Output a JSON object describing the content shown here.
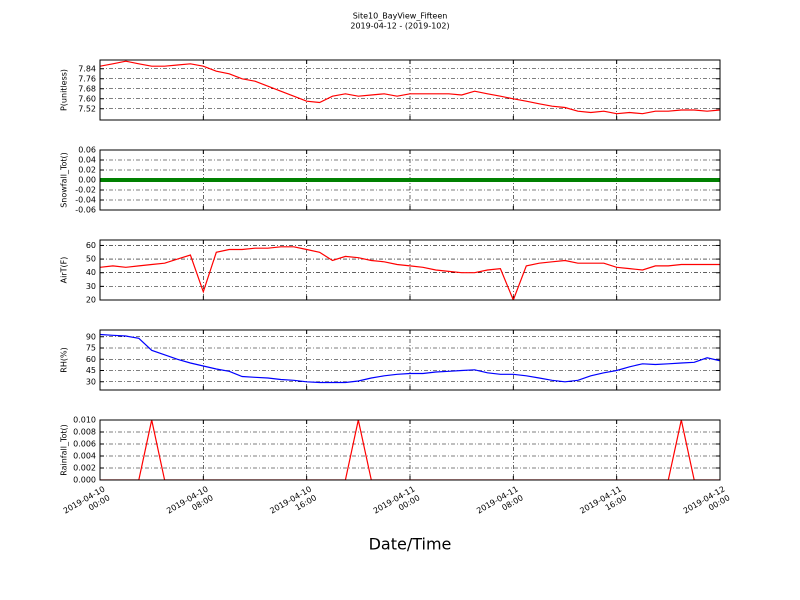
{
  "chart_data": {
    "type": "line",
    "title": "Site10_BayView_Fifteen",
    "subtitle": "2019-04-12 - (2019-102)",
    "x_label": "Date/Time",
    "grid": true,
    "x": [
      "2019-04-10 00:00",
      "2019-04-10 01:00",
      "2019-04-10 02:00",
      "2019-04-10 03:00",
      "2019-04-10 04:00",
      "2019-04-10 05:00",
      "2019-04-10 06:00",
      "2019-04-10 07:00",
      "2019-04-10 08:00",
      "2019-04-10 09:00",
      "2019-04-10 10:00",
      "2019-04-10 11:00",
      "2019-04-10 12:00",
      "2019-04-10 13:00",
      "2019-04-10 14:00",
      "2019-04-10 15:00",
      "2019-04-10 16:00",
      "2019-04-10 17:00",
      "2019-04-10 18:00",
      "2019-04-10 19:00",
      "2019-04-10 20:00",
      "2019-04-10 21:00",
      "2019-04-10 22:00",
      "2019-04-10 23:00",
      "2019-04-11 00:00",
      "2019-04-11 01:00",
      "2019-04-11 02:00",
      "2019-04-11 03:00",
      "2019-04-11 04:00",
      "2019-04-11 05:00",
      "2019-04-11 06:00",
      "2019-04-11 07:00",
      "2019-04-11 08:00",
      "2019-04-11 09:00",
      "2019-04-11 10:00",
      "2019-04-11 11:00",
      "2019-04-11 12:00",
      "2019-04-11 13:00",
      "2019-04-11 14:00",
      "2019-04-11 15:00",
      "2019-04-11 16:00",
      "2019-04-11 17:00",
      "2019-04-11 18:00",
      "2019-04-11 19:00",
      "2019-04-11 20:00",
      "2019-04-11 21:00",
      "2019-04-11 22:00",
      "2019-04-11 23:00",
      "2019-04-12 00:00"
    ],
    "xlim": [
      "2019-04-10 00:00",
      "2019-04-12 00:00"
    ],
    "xticks": [
      "2019-04-10 00:00",
      "2019-04-10 08:00",
      "2019-04-10 16:00",
      "2019-04-11 00:00",
      "2019-04-11 08:00",
      "2019-04-11 16:00",
      "2019-04-12 00:00"
    ],
    "panels": [
      {
        "y_label": "P(unitless)",
        "ylim": [
          7.43,
          7.91
        ],
        "yticks": [
          7.52,
          {
            "value": 7.6,
            "label": "7.60"
          },
          7.68,
          7.76,
          7.84
        ],
        "series": [
          {
            "color": "#ff0000",
            "values": [
              7.86,
              7.88,
              7.9,
              7.88,
              7.86,
              7.86,
              7.87,
              7.88,
              7.86,
              7.82,
              7.8,
              7.76,
              7.74,
              7.7,
              7.66,
              7.62,
              7.58,
              7.57,
              7.62,
              7.64,
              7.62,
              7.63,
              7.64,
              7.62,
              7.64,
              7.64,
              7.64,
              7.64,
              7.63,
              7.66,
              7.64,
              7.62,
              7.6,
              7.58,
              7.56,
              7.54,
              7.53,
              7.5,
              7.49,
              7.5,
              7.48,
              7.49,
              7.48,
              7.5,
              7.5,
              7.51,
              7.51,
              7.5,
              7.51
            ]
          }
        ]
      },
      {
        "y_label": "Snowfall_Tot()",
        "ylim": [
          -0.06,
          0.06
        ],
        "yticks": [
          -0.06,
          -0.04,
          -0.02,
          {
            "value": 0,
            "label": "0.00"
          },
          0.02,
          0.04,
          0.06
        ],
        "series": [
          {
            "color": "#008000",
            "values": [
              0,
              0,
              0,
              0,
              0,
              0,
              0,
              0,
              0,
              0,
              0,
              0,
              0,
              0,
              0,
              0,
              0,
              0,
              0,
              0,
              0,
              0,
              0,
              0,
              0,
              0,
              0,
              0,
              0,
              0,
              0,
              0,
              0,
              0,
              0,
              0,
              0,
              0,
              0,
              0,
              0,
              0,
              0,
              0,
              0,
              0,
              0,
              0,
              0
            ]
          }
        ]
      },
      {
        "y_label": "AirT(F)",
        "ylim": [
          20,
          64
        ],
        "yticks": [
          20,
          30,
          40,
          50,
          60
        ],
        "series": [
          {
            "color": "#ff0000",
            "values": [
              44,
              45,
              44,
              45,
              46,
              47,
              50,
              53,
              26,
              55,
              57,
              57,
              58,
              58,
              59,
              59,
              57,
              55,
              49,
              52,
              51,
              49,
              48,
              46,
              45,
              44,
              42,
              41,
              40,
              40,
              42,
              43,
              20,
              45,
              47,
              48,
              49,
              47,
              47,
              47,
              44,
              43,
              42,
              45,
              45,
              46,
              46,
              46,
              46
            ]
          }
        ]
      },
      {
        "y_label": "RH(%)",
        "ylim": [
          19,
          99
        ],
        "yticks": [
          30,
          45,
          60,
          75,
          90
        ],
        "series": [
          {
            "color": "#0000ff",
            "values": [
              93,
              92,
              91,
              88,
              72,
              66,
              60,
              55,
              51,
              47,
              44,
              37,
              36,
              35,
              33,
              32,
              30,
              29,
              29,
              29,
              31,
              35,
              38,
              40,
              41,
              41,
              43,
              44,
              45,
              46,
              42,
              40,
              40,
              38,
              35,
              32,
              30,
              32,
              38,
              42,
              45,
              50,
              54,
              53,
              54,
              55,
              56,
              62,
              58
            ]
          }
        ]
      },
      {
        "y_label": "Rainfall_Tot()",
        "ylim": [
          0,
          0.01
        ],
        "yticks": [
          {
            "value": 0,
            "label": "0.000"
          },
          {
            "value": 0.002,
            "label": "0.002"
          },
          {
            "value": 0.004,
            "label": "0.004"
          },
          {
            "value": 0.006,
            "label": "0.006"
          },
          {
            "value": 0.008,
            "label": "0.008"
          },
          {
            "value": 0.01,
            "label": "0.010"
          }
        ],
        "series": [
          {
            "color": "#ff0000",
            "values": [
              0,
              0,
              0,
              0,
              0.01,
              0,
              0,
              0,
              0,
              0,
              0,
              0,
              0,
              0,
              0,
              0,
              0,
              0,
              0,
              0,
              0.01,
              0,
              0,
              0,
              0,
              0,
              0,
              0,
              0,
              0,
              0,
              0,
              0,
              0,
              0,
              0,
              0,
              0,
              0,
              0,
              0,
              0,
              0,
              0,
              0,
              0.01,
              0,
              0,
              0
            ]
          }
        ]
      }
    ]
  }
}
